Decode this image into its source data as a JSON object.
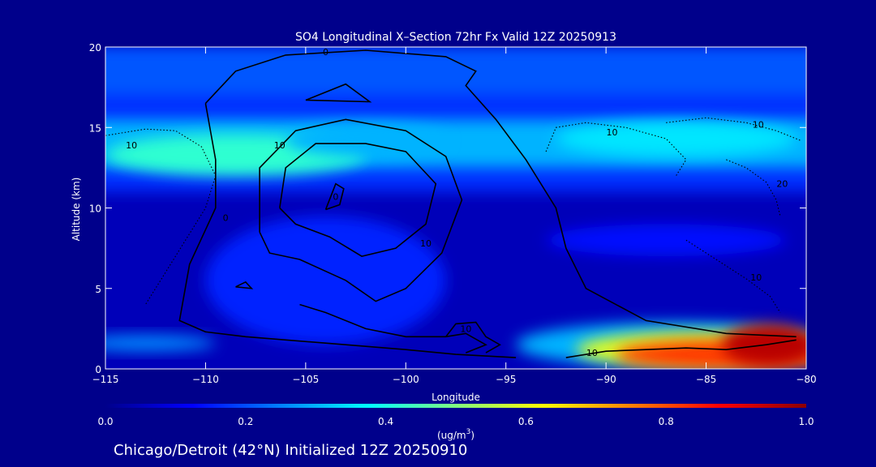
{
  "chart_data": {
    "type": "heatmap",
    "title": "SO4 Longitudinal X–Section 72hr  Fx Valid 12Z 20250913",
    "xlabel": "Longitude",
    "ylabel": "Altitude (km)",
    "xlim": [
      -115,
      -80
    ],
    "ylim": [
      0,
      20
    ],
    "x_ticks": [
      -115,
      -110,
      -105,
      -100,
      -95,
      -90,
      -85,
      -80
    ],
    "x_tick_labels": [
      "−115",
      "−110",
      "−105",
      "−100",
      "−95",
      "−90",
      "−85",
      "−80"
    ],
    "y_ticks": [
      0,
      5,
      10,
      15,
      20
    ],
    "y_tick_labels": [
      "0",
      "5",
      "10",
      "15",
      "20"
    ],
    "colorbar": {
      "min": 0.0,
      "max": 1.0,
      "ticks": [
        0.0,
        0.2,
        0.4,
        0.6,
        0.8,
        1.0
      ],
      "tick_labels": [
        "0.0",
        "0.2",
        "0.4",
        "0.6",
        "0.8",
        "1.0"
      ],
      "units_prefix": "(ug/m",
      "units_sup": "3",
      "units_suffix": ")"
    },
    "colorscale": [
      "#00008b",
      "#0000ff",
      "#0080ff",
      "#00ffff",
      "#80ff80",
      "#ffff00",
      "#ff8000",
      "#ff0000",
      "#8b0000"
    ],
    "field_layers": [
      {
        "kind": "band",
        "y0": 11.0,
        "y1": 19.5,
        "value": 0.17
      },
      {
        "kind": "band",
        "y0": 17.0,
        "y1": 20.0,
        "value": 0.21
      },
      {
        "kind": "band",
        "y0": 12.5,
        "y1": 15.5,
        "value": 0.3
      },
      {
        "kind": "blob",
        "x": -108.5,
        "y": 13.3,
        "rx": 6.5,
        "ry": 1.3,
        "value": 0.42
      },
      {
        "kind": "blob",
        "x": -86.5,
        "y": 14.3,
        "rx": 6.0,
        "ry": 1.1,
        "value": 0.35
      },
      {
        "kind": "blob",
        "x": -102.0,
        "y": 14.2,
        "rx": 4.0,
        "ry": 1.0,
        "value": 0.3
      },
      {
        "kind": "blob",
        "x": -104.0,
        "y": 5.5,
        "rx": 6.0,
        "ry": 4.0,
        "value": 0.16
      },
      {
        "kind": "blob",
        "x": -87.0,
        "y": 8.0,
        "rx": 6.0,
        "ry": 1.0,
        "value": 0.14
      },
      {
        "kind": "blob",
        "x": -86.5,
        "y": 1.5,
        "rx": 8.0,
        "ry": 1.4,
        "value": 0.3
      },
      {
        "kind": "blob",
        "x": -85.0,
        "y": 1.2,
        "rx": 6.5,
        "ry": 1.1,
        "value": 0.6
      },
      {
        "kind": "blob",
        "x": -84.0,
        "y": 0.9,
        "rx": 5.5,
        "ry": 0.9,
        "value": 0.82
      },
      {
        "kind": "blob",
        "x": -81.8,
        "y": 1.5,
        "rx": 2.4,
        "ry": 1.3,
        "value": 0.95
      },
      {
        "kind": "blob",
        "x": -113.0,
        "y": 1.6,
        "rx": 3.5,
        "ry": 0.5,
        "value": 0.26
      }
    ],
    "contours": [
      {
        "style": "solid",
        "label": "0",
        "label_at": [
          -104.0,
          19.5
        ],
        "points": [
          [
            -110.0,
            16.5
          ],
          [
            -108.5,
            18.5
          ],
          [
            -106.0,
            19.5
          ],
          [
            -102.0,
            19.8
          ],
          [
            -98.0,
            19.4
          ],
          [
            -96.5,
            18.5
          ],
          [
            -97.0,
            17.6
          ],
          [
            -95.5,
            15.5
          ],
          [
            -94.0,
            13.0
          ],
          [
            -92.5,
            10.0
          ],
          [
            -92.0,
            7.5
          ],
          [
            -91.0,
            5.0
          ],
          [
            -88.0,
            3.0
          ],
          [
            -84.0,
            2.2
          ],
          [
            -80.5,
            2.0
          ]
        ]
      },
      {
        "style": "solid",
        "label": "0",
        "label_at": [
          -109.0,
          9.2
        ],
        "points": [
          [
            -110.0,
            16.5
          ],
          [
            -109.5,
            13.0
          ],
          [
            -109.5,
            10.0
          ],
          [
            -110.8,
            6.5
          ],
          [
            -111.3,
            3.0
          ],
          [
            -110.0,
            2.3
          ],
          [
            -108.0,
            2.0
          ],
          [
            -104.0,
            1.6
          ],
          [
            -100.0,
            1.2
          ],
          [
            -97.5,
            0.9
          ],
          [
            -94.5,
            0.7
          ]
        ]
      },
      {
        "style": "solid",
        "label": "10",
        "label_at": [
          -106.3,
          13.7
        ],
        "points": [
          [
            -107.3,
            8.5
          ],
          [
            -107.3,
            12.5
          ],
          [
            -105.5,
            14.8
          ],
          [
            -103.0,
            15.5
          ],
          [
            -100.0,
            14.8
          ],
          [
            -98.0,
            13.2
          ],
          [
            -97.2,
            10.5
          ],
          [
            -98.2,
            7.2
          ],
          [
            -100.0,
            5.0
          ],
          [
            -101.5,
            4.2
          ],
          [
            -103.0,
            5.5
          ],
          [
            -105.3,
            6.8
          ],
          [
            -106.8,
            7.2
          ],
          [
            -107.3,
            8.5
          ]
        ]
      },
      {
        "style": "solid",
        "label": "10",
        "label_at": [
          -99.0,
          7.6
        ],
        "points": [
          [
            -106.3,
            10.0
          ],
          [
            -106.0,
            12.5
          ],
          [
            -104.5,
            14.0
          ],
          [
            -102.0,
            14.0
          ],
          [
            -100.0,
            13.5
          ],
          [
            -98.5,
            11.5
          ],
          [
            -99.0,
            9.0
          ],
          [
            -100.5,
            7.5
          ],
          [
            -102.2,
            7.0
          ],
          [
            -103.8,
            8.2
          ],
          [
            -105.5,
            9.0
          ],
          [
            -106.3,
            10.0
          ]
        ]
      },
      {
        "style": "solid",
        "label": "0",
        "label_at": [
          -103.5,
          10.5
        ],
        "points": [
          [
            -104.0,
            9.9
          ],
          [
            -103.5,
            11.5
          ],
          [
            -103.1,
            11.2
          ],
          [
            -103.3,
            10.2
          ],
          [
            -104.0,
            9.9
          ]
        ]
      },
      {
        "style": "solid",
        "label": "",
        "label_at": null,
        "points": [
          [
            -105.0,
            16.7
          ],
          [
            -103.0,
            17.7
          ],
          [
            -101.8,
            16.6
          ],
          [
            -105.0,
            16.7
          ]
        ]
      },
      {
        "style": "solid",
        "label": "",
        "label_at": null,
        "points": [
          [
            -108.5,
            5.1
          ],
          [
            -108.0,
            5.4
          ],
          [
            -107.7,
            5.0
          ],
          [
            -108.5,
            5.1
          ]
        ]
      },
      {
        "style": "solid",
        "label": "",
        "label_at": null,
        "points": [
          [
            -105.3,
            4.0
          ],
          [
            -104.0,
            3.5
          ],
          [
            -102.0,
            2.5
          ],
          [
            -100.0,
            2.0
          ],
          [
            -98.0,
            2.0
          ],
          [
            -97.0,
            2.2
          ],
          [
            -96.0,
            1.5
          ],
          [
            -97.0,
            1.0
          ]
        ]
      },
      {
        "style": "solid",
        "label": "10",
        "label_at": [
          -97.0,
          2.3
        ],
        "points": [
          [
            -98.0,
            2.0
          ],
          [
            -97.5,
            2.8
          ],
          [
            -96.5,
            2.9
          ],
          [
            -96.0,
            2.0
          ],
          [
            -95.3,
            1.5
          ],
          [
            -96.0,
            1.0
          ]
        ]
      },
      {
        "style": "solid",
        "label": "10",
        "label_at": [
          -90.7,
          0.8
        ],
        "points": [
          [
            -92.0,
            0.7
          ],
          [
            -90.0,
            1.1
          ],
          [
            -88.0,
            1.2
          ],
          [
            -86.0,
            1.3
          ],
          [
            -84.0,
            1.2
          ],
          [
            -82.0,
            1.5
          ],
          [
            -80.5,
            1.8
          ]
        ]
      },
      {
        "style": "dotted",
        "label": "10",
        "label_at": [
          -113.7,
          13.7
        ],
        "points": [
          [
            -115.0,
            14.5
          ],
          [
            -113.0,
            14.9
          ],
          [
            -111.5,
            14.8
          ],
          [
            -110.2,
            13.8
          ],
          [
            -109.5,
            12.0
          ],
          [
            -110.0,
            10.0
          ],
          [
            -111.0,
            8.0
          ],
          [
            -112.0,
            6.0
          ],
          [
            -113.0,
            4.0
          ]
        ]
      },
      {
        "style": "dotted",
        "label": "10",
        "label_at": [
          -89.7,
          14.5
        ],
        "points": [
          [
            -93.0,
            13.5
          ],
          [
            -92.5,
            15.0
          ],
          [
            -91.0,
            15.3
          ],
          [
            -89.0,
            15.0
          ],
          [
            -87.0,
            14.3
          ],
          [
            -86.0,
            13.0
          ],
          [
            -86.5,
            12.0
          ]
        ]
      },
      {
        "style": "dotted",
        "label": "10",
        "label_at": [
          -82.4,
          15.0
        ],
        "points": [
          [
            -87.0,
            15.3
          ],
          [
            -85.0,
            15.6
          ],
          [
            -83.0,
            15.3
          ],
          [
            -81.5,
            14.8
          ],
          [
            -80.3,
            14.2
          ]
        ]
      },
      {
        "style": "dotted",
        "label": "20",
        "label_at": [
          -81.2,
          11.3
        ],
        "points": [
          [
            -84.0,
            13.0
          ],
          [
            -83.0,
            12.5
          ],
          [
            -82.0,
            11.6
          ],
          [
            -81.5,
            10.5
          ],
          [
            -81.3,
            9.5
          ]
        ]
      },
      {
        "style": "dotted",
        "label": "10",
        "label_at": [
          -82.5,
          5.5
        ],
        "points": [
          [
            -86.0,
            8.0
          ],
          [
            -84.5,
            6.8
          ],
          [
            -83.0,
            5.6
          ],
          [
            -81.8,
            4.5
          ],
          [
            -81.3,
            3.5
          ]
        ]
      }
    ]
  },
  "footer": {
    "subtitle": "Chicago/Detroit (42°N) Initialized 12Z 20250910"
  }
}
